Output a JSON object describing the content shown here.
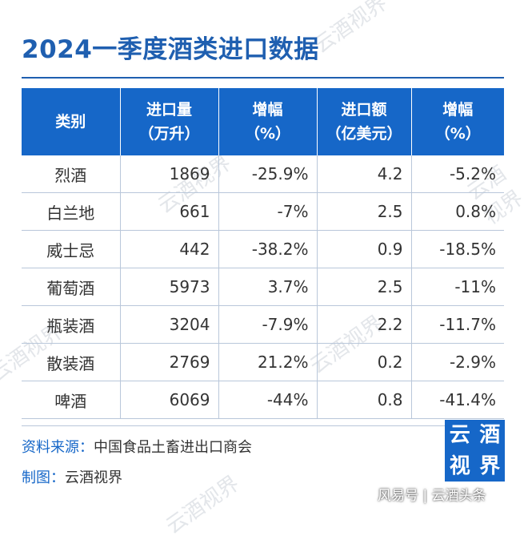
{
  "title": "2024一季度酒类进口数据",
  "table": {
    "headers": [
      {
        "line1": "类别",
        "line2": ""
      },
      {
        "line1": "进口量",
        "line2": "（万升）"
      },
      {
        "line1": "增幅",
        "line2": "（%）"
      },
      {
        "line1": "进口额",
        "line2": "（亿美元）"
      },
      {
        "line1": "增幅",
        "line2": "（%）"
      }
    ],
    "rows": [
      [
        "烈酒",
        "1869",
        "-25.9%",
        "4.2",
        "-5.2%"
      ],
      [
        "白兰地",
        "661",
        "-7%",
        "2.5",
        "0.8%"
      ],
      [
        "威士忌",
        "442",
        "-38.2%",
        "0.9",
        "-18.5%"
      ],
      [
        "葡萄酒",
        "5973",
        "3.7%",
        "2.5",
        "-11%"
      ],
      [
        "瓶装酒",
        "3204",
        "-7.9%",
        "2.2",
        "-11.7%"
      ],
      [
        "散装酒",
        "2769",
        "21.2%",
        "0.2",
        "-2.9%"
      ],
      [
        "啤酒",
        "6069",
        "-44%",
        "0.8",
        "-41.4%"
      ]
    ]
  },
  "footer": {
    "source_label": "资料来源：",
    "source_value": "中国食品土畜进出口商会",
    "chart_label": "制图：",
    "chart_value": "云酒视界"
  },
  "logo": {
    "chars": [
      "云",
      "酒",
      "视",
      "界"
    ]
  },
  "watermark": "云酒视界",
  "attribution": "风易号 | 云酒头条",
  "colors": {
    "brand_blue": "#1667c8",
    "title_blue": "#1f5fb0",
    "grid": "#b9c7da"
  }
}
